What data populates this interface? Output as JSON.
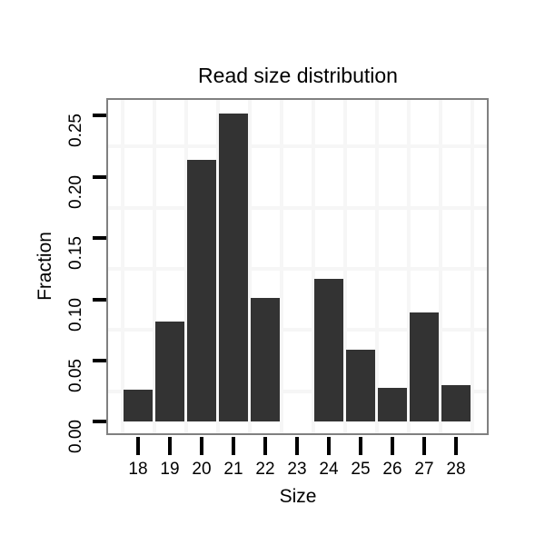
{
  "figure": {
    "title": "Read size distribution",
    "x_axis_label": "Size",
    "y_axis_label": "Fraction"
  },
  "chart_data": {
    "type": "bar",
    "title": "Read size distribution",
    "xlabel": "Size",
    "ylabel": "Fraction",
    "categories": [
      "18",
      "19",
      "20",
      "21",
      "22",
      "23",
      "24",
      "25",
      "26",
      "27",
      "28"
    ],
    "values": [
      0.026,
      0.082,
      0.214,
      0.252,
      0.101,
      0.0,
      0.117,
      0.059,
      0.028,
      0.089,
      0.03
    ],
    "ylim": [
      -0.013,
      0.2646
    ],
    "y_ticks": [
      {
        "value": 0.0,
        "label": "0.00"
      },
      {
        "value": 0.05,
        "label": "0.05"
      },
      {
        "value": 0.1,
        "label": "0.10"
      },
      {
        "value": 0.15,
        "label": "0.15"
      },
      {
        "value": 0.2,
        "label": "0.20"
      },
      {
        "value": 0.25,
        "label": "0.25"
      }
    ],
    "y_minor_gridline_values": [
      0.025,
      0.075,
      0.125,
      0.175,
      0.225
    ],
    "grid": "faint minor gridlines only, white panel background",
    "legend_position": "none",
    "bar_color": "#333333"
  },
  "colors": {
    "background": "#ffffff",
    "bar_fill": "#333333",
    "panel_border": "#808080",
    "gridline": "#f6f6f6",
    "tick_mark": "#000000",
    "text": "#000000"
  }
}
